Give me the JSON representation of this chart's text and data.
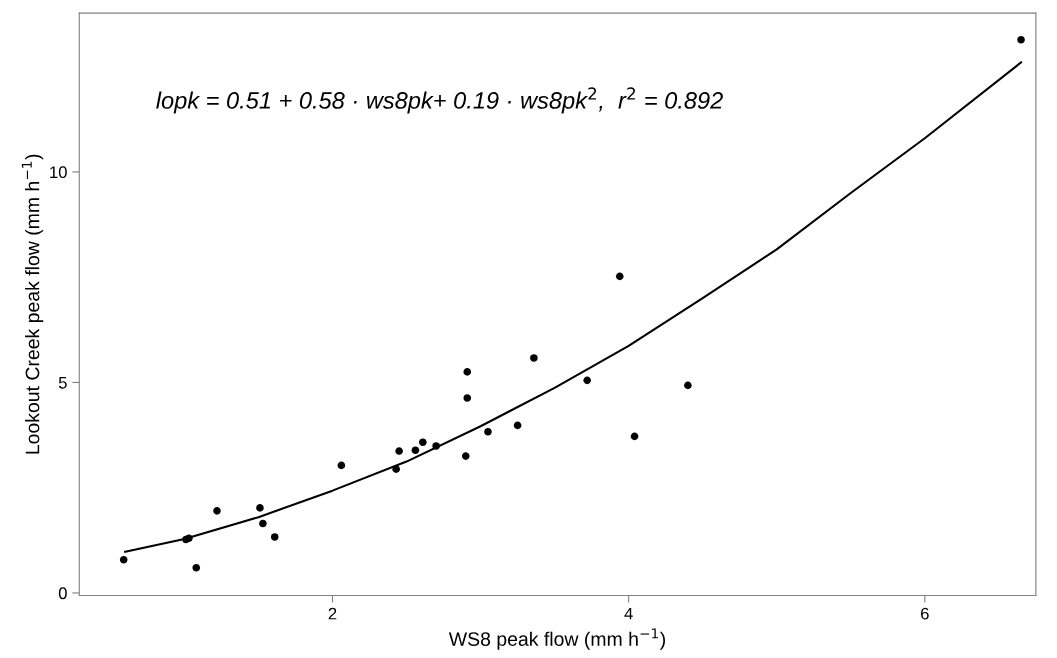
{
  "chart_data": {
    "type": "scatter",
    "xlabel": "WS8 peak flow (mm h$^{−1}$)",
    "ylabel": "Lookout Creek peak flow (mm h$^{−1}$)",
    "annotations": [
      "lopk = 0.51 + 0.58 · ws8pk+ 0.19 · ws8pk$^{2}$,  r$^{2}$ = 0.892"
    ],
    "xlim": [
      0.29,
      6.75
    ],
    "ylim": [
      -0.06,
      13.77
    ],
    "xticks": [
      2,
      4,
      6
    ],
    "yticks": [
      0,
      5,
      10
    ],
    "grid": false,
    "marker": "circle",
    "series": [
      {
        "color": "#000000",
        "x": [
          0.59,
          1.01,
          1.03,
          1.08,
          1.22,
          1.51,
          1.53,
          1.61,
          2.06,
          2.43,
          2.45,
          2.56,
          2.61,
          2.7,
          2.9,
          2.91,
          2.91,
          3.05,
          3.25,
          3.36,
          3.72,
          3.94,
          4.04,
          4.4,
          6.65
        ],
        "values": [
          0.79,
          1.27,
          1.3,
          0.6,
          1.95,
          2.02,
          1.65,
          1.33,
          3.03,
          2.94,
          3.37,
          3.39,
          3.58,
          3.49,
          3.25,
          4.63,
          5.25,
          3.83,
          3.98,
          5.58,
          5.05,
          7.52,
          3.72,
          4.93,
          13.14
        ]
      },
      {
        "type": "line",
        "color": "#000000",
        "marker": "none",
        "line_style": "solid",
        "x": [
          0.6,
          1.0,
          1.5,
          2.0,
          2.5,
          3.0,
          3.5,
          4.0,
          4.5,
          5.0,
          5.5,
          6.0,
          6.65
        ],
        "values": [
          0.98,
          1.28,
          1.8,
          2.43,
          3.12,
          3.96,
          4.87,
          5.87,
          7.0,
          8.16,
          9.5,
          10.8,
          12.6
        ]
      }
    ]
  }
}
